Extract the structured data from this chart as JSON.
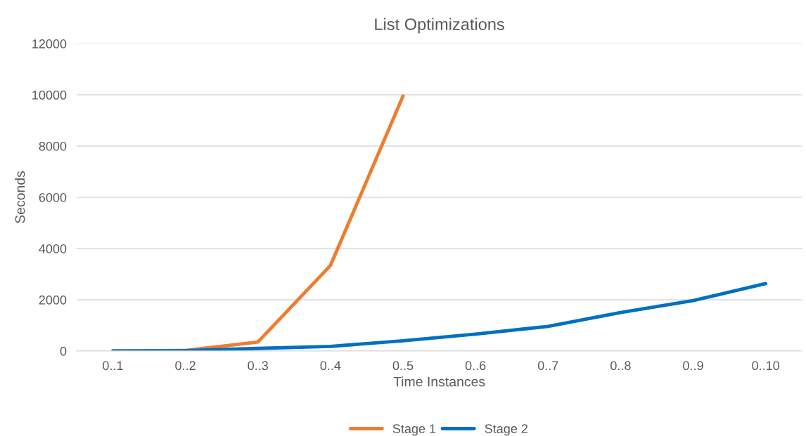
{
  "chart_data": {
    "type": "line",
    "title": "List Optimizations",
    "xlabel": "Time Instances",
    "ylabel": "Seconds",
    "categories": [
      "0..1",
      "0..2",
      "0..3",
      "0..4",
      "0..5",
      "0..6",
      "0..7",
      "0..8",
      "0..9",
      "0..10"
    ],
    "series": [
      {
        "name": "Stage 1",
        "color": "#ed7d31",
        "values": [
          0,
          20,
          350,
          3340,
          9950,
          null,
          null,
          null,
          null,
          null
        ]
      },
      {
        "name": "Stage 2",
        "color": "#0070c0",
        "values": [
          0,
          10,
          100,
          180,
          400,
          660,
          960,
          1500,
          1970,
          2630
        ]
      }
    ],
    "ylim": [
      0,
      12000
    ],
    "yticks": [
      0,
      2000,
      4000,
      6000,
      8000,
      10000,
      12000
    ],
    "grid": "y",
    "legend": "bottom",
    "marker": "none",
    "line_style": "solid"
  }
}
